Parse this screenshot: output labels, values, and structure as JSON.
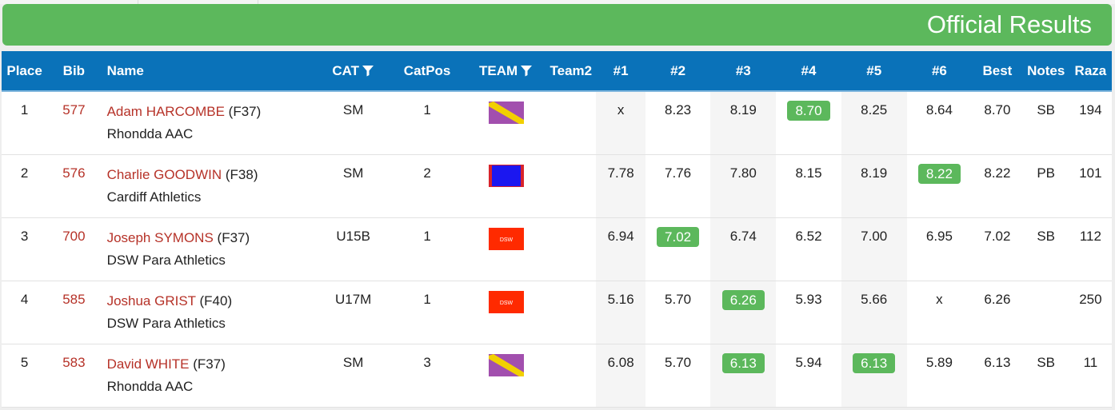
{
  "banner": {
    "title": "Official Results"
  },
  "colors": {
    "banner": "#5cb85c",
    "header": "#0a72b9",
    "athlete_link": "#b63228",
    "best_highlight": "#5cb85c",
    "flag_rhondda": [
      "#a24fae",
      "#f2d000"
    ],
    "flag_cardiff": [
      "#1b17f0",
      "#d8242b"
    ],
    "flag_dsw": "#ff2a00"
  },
  "table": {
    "headers": {
      "place": "Place",
      "bib": "Bib",
      "name": "Name",
      "cat": "CAT",
      "catpos": "CatPos",
      "team": "TEAM",
      "team2": "Team2",
      "r1": "#1",
      "r2": "#2",
      "r3": "#3",
      "r4": "#4",
      "r5": "#5",
      "r6": "#6",
      "best": "Best",
      "notes": "Notes",
      "raza": "Raza"
    },
    "filter_icon": "filter-icon",
    "rows": [
      {
        "place": "1",
        "bib": "577",
        "name": "Adam HARCOMBE",
        "class": "(F37)",
        "club": "Rhondda AAC",
        "cat": "SM",
        "catpos": "1",
        "team_flag": "rhondda",
        "team_flag_text": "",
        "team2": "",
        "attempts": [
          "x",
          "8.23",
          "8.19",
          "8.70",
          "8.25",
          "8.64"
        ],
        "best_index": 3,
        "best": "8.70",
        "notes": "SB",
        "raza": "194"
      },
      {
        "place": "2",
        "bib": "576",
        "name": "Charlie GOODWIN",
        "class": "(F38)",
        "club": "Cardiff Athletics",
        "cat": "SM",
        "catpos": "2",
        "team_flag": "cardiff",
        "team_flag_text": "",
        "team2": "",
        "attempts": [
          "7.78",
          "7.76",
          "7.80",
          "8.15",
          "8.19",
          "8.22"
        ],
        "best_index": 5,
        "best": "8.22",
        "notes": "PB",
        "raza": "101"
      },
      {
        "place": "3",
        "bib": "700",
        "name": "Joseph SYMONS",
        "class": "(F37)",
        "club": "DSW Para Athletics",
        "cat": "U15B",
        "catpos": "1",
        "team_flag": "dsw",
        "team_flag_text": "DSW",
        "team2": "",
        "attempts": [
          "6.94",
          "7.02",
          "6.74",
          "6.52",
          "7.00",
          "6.95"
        ],
        "best_index": 1,
        "best": "7.02",
        "notes": "SB",
        "raza": "112"
      },
      {
        "place": "4",
        "bib": "585",
        "name": "Joshua GRIST",
        "class": "(F40)",
        "club": "DSW Para Athletics",
        "cat": "U17M",
        "catpos": "1",
        "team_flag": "dsw",
        "team_flag_text": "DSW",
        "team2": "",
        "attempts": [
          "5.16",
          "5.70",
          "6.26",
          "5.93",
          "5.66",
          "x"
        ],
        "best_index": 2,
        "best": "6.26",
        "notes": "",
        "raza": "250"
      },
      {
        "place": "5",
        "bib": "583",
        "name": "David WHITE",
        "class": "(F37)",
        "club": "Rhondda AAC",
        "cat": "SM",
        "catpos": "3",
        "team_flag": "rhondda",
        "team_flag_text": "",
        "team2": "",
        "attempts": [
          "6.08",
          "5.70",
          "6.13",
          "5.94",
          "6.13",
          "5.89"
        ],
        "best_index": 2,
        "best_index_2": 4,
        "best": "6.13",
        "notes": "SB",
        "raza": "11"
      }
    ]
  }
}
